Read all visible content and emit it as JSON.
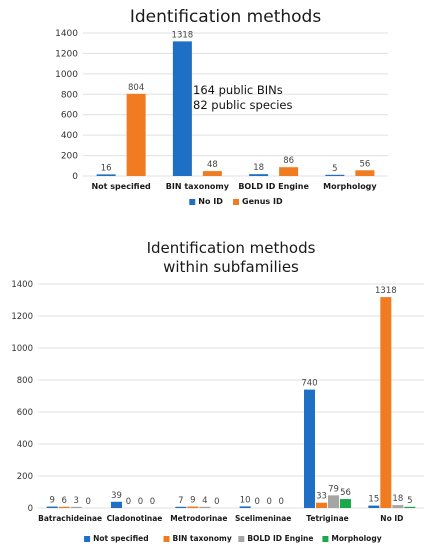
{
  "chart_data": [
    {
      "type": "bar",
      "title": "Identification methods",
      "categories": [
        "Not specified",
        "BIN taxonomy",
        "BOLD ID Engine",
        "Morphology"
      ],
      "series": [
        {
          "name": "No ID",
          "color": "#1f6fc5",
          "values": [
            16,
            1318,
            18,
            5
          ]
        },
        {
          "name": "Genus ID",
          "color": "#f07b21",
          "values": [
            804,
            48,
            86,
            56
          ]
        }
      ],
      "ylim": [
        0,
        1400
      ],
      "yticks": [
        0,
        200,
        400,
        600,
        800,
        1000,
        1200,
        1400
      ],
      "grid": true,
      "legend": "bottom",
      "annotation": [
        "164 public BINs",
        "82 public species"
      ]
    },
    {
      "type": "bar",
      "title": [
        "Identification methods",
        "within subfamilies"
      ],
      "categories": [
        "Batrachideinae",
        "Cladonotinae",
        "Metrodorinae",
        "Scelimeninae",
        "Tetriginae",
        "No ID"
      ],
      "series": [
        {
          "name": "Not specified",
          "color": "#1f6fc5",
          "values": [
            9,
            39,
            7,
            10,
            740,
            15
          ]
        },
        {
          "name": "BIN taxonomy",
          "color": "#f07b21",
          "values": [
            6,
            0,
            9,
            0,
            33,
            1318
          ]
        },
        {
          "name": "BOLD ID Engine",
          "color": "#a5a5a5",
          "values": [
            3,
            0,
            4,
            0,
            79,
            18
          ]
        },
        {
          "name": "Morphology",
          "color": "#1aa84a",
          "values": [
            0,
            0,
            0,
            0,
            56,
            5
          ]
        }
      ],
      "ylim": [
        0,
        1400
      ],
      "yticks": [
        0,
        200,
        400,
        600,
        800,
        1000,
        1200,
        1400
      ],
      "grid": true,
      "legend": "bottom"
    }
  ]
}
